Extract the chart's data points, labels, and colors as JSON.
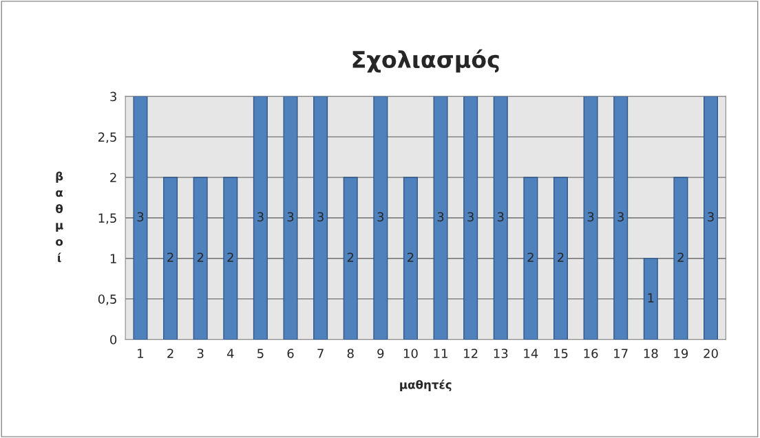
{
  "chart_data": {
    "type": "bar",
    "title": "Σχολιασμός",
    "xlabel": "μαθητές",
    "ylabel": "βαθμοί",
    "categories": [
      "1",
      "2",
      "3",
      "4",
      "5",
      "6",
      "7",
      "8",
      "9",
      "10",
      "11",
      "12",
      "13",
      "14",
      "15",
      "16",
      "17",
      "18",
      "19",
      "20"
    ],
    "values": [
      3,
      2,
      2,
      2,
      3,
      3,
      3,
      2,
      3,
      2,
      3,
      3,
      3,
      2,
      2,
      3,
      3,
      1,
      2,
      3
    ],
    "color": "#4f81bd",
    "ylim": [
      0,
      3
    ],
    "yticks": [
      0,
      {
        "value": 0.5,
        "label": "0,5"
      },
      1,
      {
        "value": 1.5,
        "label": "1,5"
      },
      2,
      {
        "value": 2.5,
        "label": "2,5"
      },
      3
    ],
    "grid": "y",
    "data_labels": true
  }
}
